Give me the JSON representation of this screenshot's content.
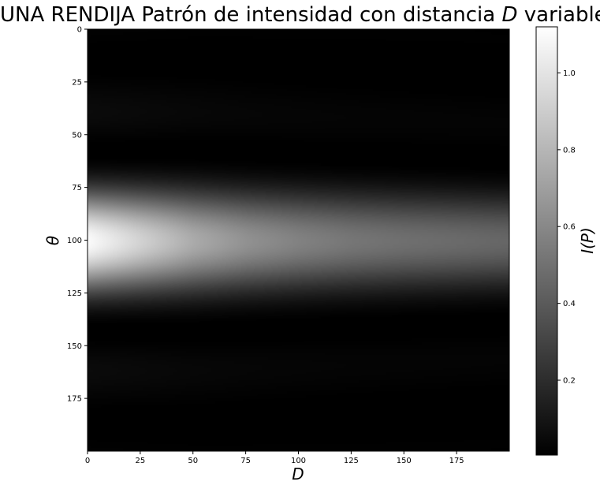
{
  "chart_data": {
    "type": "heatmap",
    "title_prefix": "UNA RENDIJA Patrón de intensidad con distancia ",
    "title_variable": "D",
    "title_suffix": " variable",
    "xlabel": "D",
    "ylabel": "θ",
    "colorbar_label": "I(P)",
    "colormap": "gray",
    "colors": {
      "low": "#000000",
      "high": "#ffffff"
    },
    "grid": false,
    "shape": [
      200,
      200
    ],
    "xlim": [
      0,
      200
    ],
    "ylim": [
      200,
      0
    ],
    "x_ticks": [
      0,
      25,
      50,
      75,
      100,
      125,
      150,
      175
    ],
    "y_ticks": [
      0,
      25,
      50,
      75,
      100,
      125,
      150,
      175
    ],
    "colorbar_range": [
      0.005,
      1.12
    ],
    "colorbar_ticks": [
      0.2,
      0.4,
      0.6,
      0.8,
      1.0
    ],
    "colorbar_tick_labels": [
      "0.2",
      "0.4",
      "0.6",
      "0.8",
      "1.0"
    ],
    "central_peak_theta": 100,
    "center_intensity": [
      {
        "D": 0,
        "I": 1.1
      },
      {
        "D": 25,
        "I": 0.92
      },
      {
        "D": 50,
        "I": 0.75
      },
      {
        "D": 75,
        "I": 0.64
      },
      {
        "D": 100,
        "I": 0.57
      },
      {
        "D": 125,
        "I": 0.52
      },
      {
        "D": 150,
        "I": 0.49
      },
      {
        "D": 175,
        "I": 0.47
      },
      {
        "D": 199,
        "I": 0.45
      }
    ],
    "central_halfwidth_theta": [
      {
        "D": 0,
        "w": 33
      },
      {
        "D": 50,
        "w": 33
      },
      {
        "D": 100,
        "w": 32
      },
      {
        "D": 199,
        "w": 30
      }
    ],
    "first_minima_theta": [
      55,
      140
    ],
    "secondary_band_intensity": 0.03
  }
}
